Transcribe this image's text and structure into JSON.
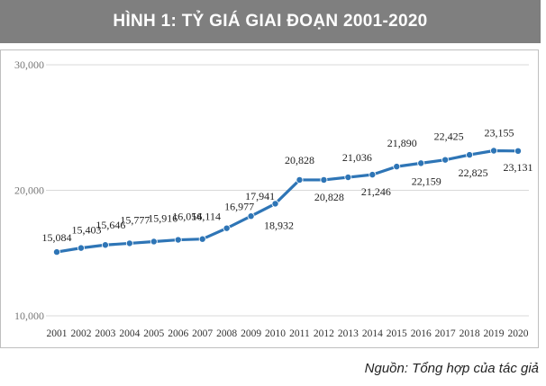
{
  "header": {
    "title": "HÌNH 1: TỶ GIÁ GIAI ĐOẠN 2001-2020"
  },
  "source": "Nguồn: Tổng hợp của tác giả",
  "colors": {
    "title_bg": "#7f7f7f",
    "line": "#2e75b6",
    "grid": "#d9d9d9"
  },
  "chart_data": {
    "type": "line",
    "title": "HÌNH 1: TỶ GIÁ GIAI ĐOẠN 2001-2020",
    "xlabel": "",
    "ylabel": "",
    "ylim": [
      10000,
      30000
    ],
    "yticks": [
      10000,
      20000,
      30000
    ],
    "ytick_labels": [
      "10,000",
      "20,000",
      "30,000"
    ],
    "grid": true,
    "legend": "none",
    "categories": [
      "2001",
      "2002",
      "2003",
      "2004",
      "2005",
      "2006",
      "2007",
      "2008",
      "2009",
      "2010",
      "2011",
      "2012",
      "2013",
      "2014",
      "2015",
      "2016",
      "2017",
      "2018",
      "2019",
      "2020"
    ],
    "series": [
      {
        "name": "Tỷ giá",
        "values": [
          15084,
          15403,
          15646,
          15777,
          15916,
          16054,
          16114,
          16977,
          17941,
          18932,
          20828,
          20828,
          21036,
          21246,
          21890,
          22159,
          22425,
          22825,
          23155,
          23131
        ],
        "labels": [
          "15,084",
          "15,403",
          "15,646",
          "15,777",
          "15,916",
          "16,054",
          "16,114",
          "16,977",
          "17,941",
          "18,932",
          "20,828",
          "20,828",
          "21,036",
          "21,246",
          "21,890",
          "22,159",
          "22,425",
          "22,825",
          "23,155",
          "23,131"
        ]
      }
    ]
  }
}
